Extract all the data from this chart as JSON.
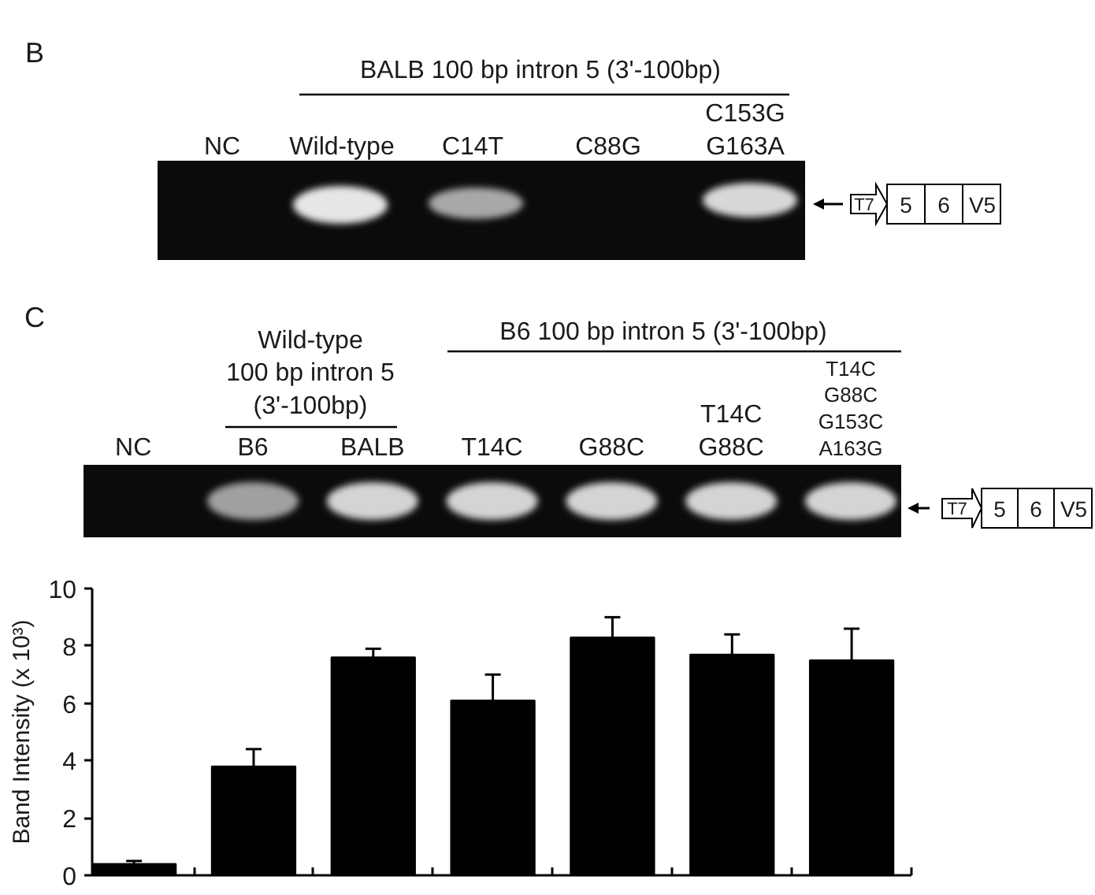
{
  "chart_data": {
    "type": "bar",
    "categories": [
      "NC",
      "B6",
      "BALB",
      "T14C",
      "G88C",
      "T14C\nG88C",
      "T14C\nG88C\nG153C\nA163G"
    ],
    "values": [
      0.4,
      3.8,
      7.6,
      6.1,
      8.3,
      7.7,
      7.5
    ],
    "errors": [
      [
        0.4,
        0.5
      ],
      [
        3.8,
        4.4
      ],
      [
        7.6,
        7.9
      ],
      [
        6.1,
        7.0
      ],
      [
        8.3,
        9.0
      ],
      [
        7.7,
        8.4
      ],
      [
        7.5,
        8.6
      ]
    ],
    "color": "#000000",
    "ylabel": "Band Intensity (x 10³)",
    "ylim": [
      0,
      10
    ],
    "yticks": [
      0,
      2,
      4,
      6,
      8,
      10
    ],
    "grid": false,
    "annotations": [
      "B",
      "BALB 100 bp intron 5 (3'-100bp)",
      "NC",
      "Wild-type",
      "C14T",
      "C88G",
      "C153G\nG163A",
      "T7",
      "5",
      "6",
      "V5",
      "C",
      "B6 100 bp intron 5 (3'-100bp)",
      "Wild-type\n100 bp intron 5\n(3'-100bp)",
      "T7",
      "5",
      "6",
      "V5"
    ]
  }
}
